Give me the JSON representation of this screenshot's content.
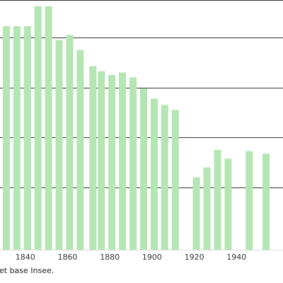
{
  "chart_data": {
    "type": "bar",
    "title": "",
    "xlabel": "",
    "ylabel": "",
    "x_ticks": [
      1840,
      1860,
      1880,
      1900,
      1920,
      1940
    ],
    "x_visible_range": [
      1828,
      1962
    ],
    "grid": "horizontal",
    "colors": {
      "bar": "#b3e6b3",
      "grid": "#333333",
      "background": "#ffffff"
    },
    "bars": [
      {
        "year": 1831,
        "value": 0.895
      },
      {
        "year": 1836,
        "value": 0.895
      },
      {
        "year": 1841,
        "value": 0.895
      },
      {
        "year": 1846,
        "value": 0.975
      },
      {
        "year": 1851,
        "value": 0.975
      },
      {
        "year": 1856,
        "value": 0.84
      },
      {
        "year": 1861,
        "value": 0.86
      },
      {
        "year": 1866,
        "value": 0.8
      },
      {
        "year": 1872,
        "value": 0.735
      },
      {
        "year": 1876,
        "value": 0.715
      },
      {
        "year": 1881,
        "value": 0.7
      },
      {
        "year": 1886,
        "value": 0.71
      },
      {
        "year": 1891,
        "value": 0.69
      },
      {
        "year": 1896,
        "value": 0.645
      },
      {
        "year": 1901,
        "value": 0.605
      },
      {
        "year": 1906,
        "value": 0.58
      },
      {
        "year": 1911,
        "value": 0.56
      },
      {
        "year": 1921,
        "value": 0.29
      },
      {
        "year": 1926,
        "value": 0.33
      },
      {
        "year": 1931,
        "value": 0.4
      },
      {
        "year": 1936,
        "value": 0.365
      },
      {
        "year": 1946,
        "value": 0.395
      },
      {
        "year": 1954,
        "value": 0.385
      }
    ],
    "gridline_levels": [
      0.25,
      0.45,
      0.65,
      0.85,
      1.0
    ]
  },
  "source_note": "et base Insee."
}
